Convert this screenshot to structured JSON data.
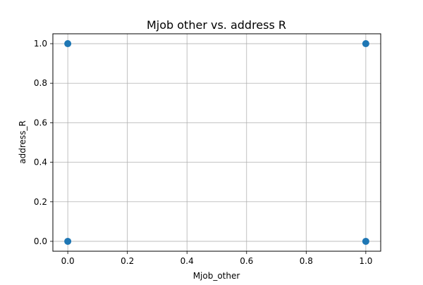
{
  "chart_data": {
    "type": "scatter",
    "title": "Mjob other vs. address R",
    "xlabel": "Mjob_other",
    "ylabel": "address_R",
    "xlim": [
      -0.05,
      1.05
    ],
    "ylim": [
      -0.05,
      1.05
    ],
    "xticks": [
      "0.0",
      "0.2",
      "0.4",
      "0.6",
      "0.8",
      "1.0"
    ],
    "yticks": [
      "0.0",
      "0.2",
      "0.4",
      "0.6",
      "0.8",
      "1.0"
    ],
    "grid": true,
    "marker_color": "#1f77b4",
    "points": [
      {
        "x": 0,
        "y": 0
      },
      {
        "x": 0,
        "y": 1
      },
      {
        "x": 1,
        "y": 0
      },
      {
        "x": 1,
        "y": 1
      }
    ]
  }
}
